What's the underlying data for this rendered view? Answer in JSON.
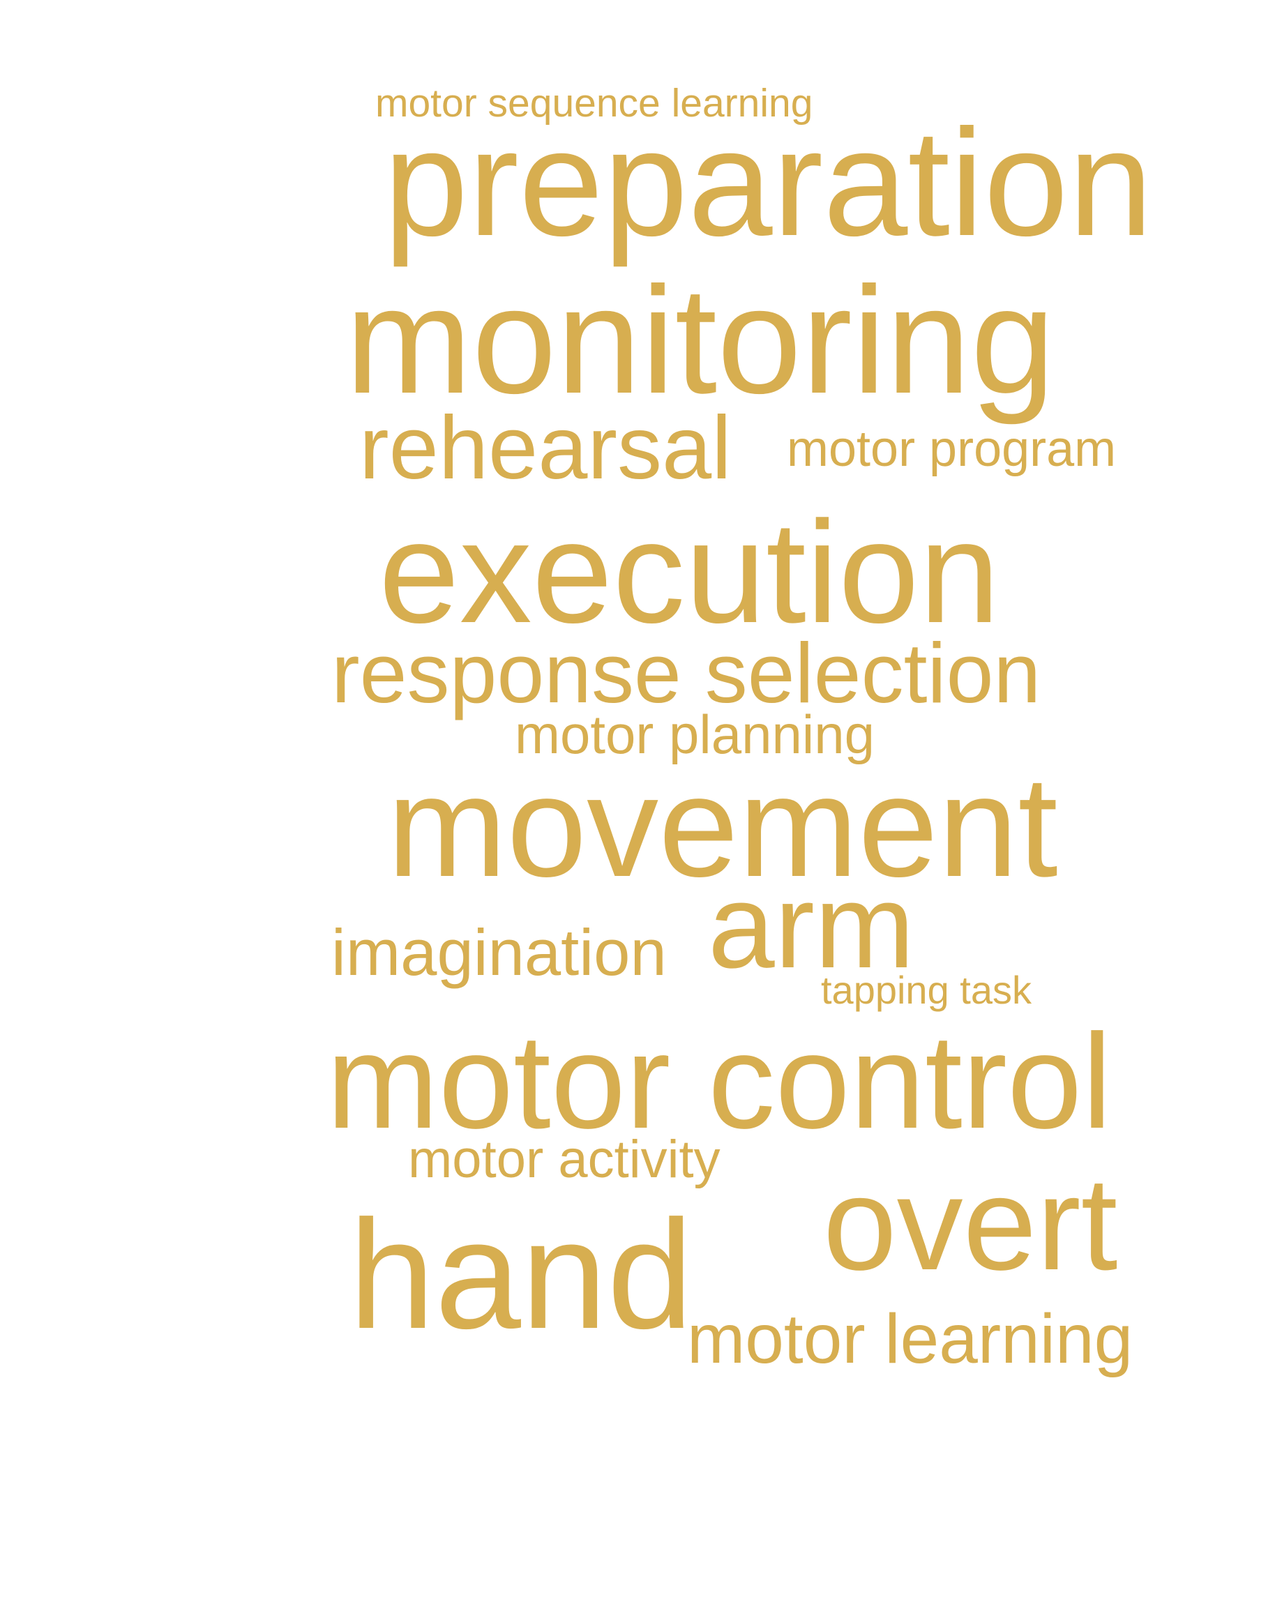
{
  "word_cloud": {
    "color": "#D7AE50",
    "words": [
      "motor sequence learning",
      "preparation",
      "monitoring",
      "rehearsal",
      "motor program",
      "execution",
      "response selection",
      "motor planning",
      "movement",
      "arm",
      "imagination",
      "tapping task",
      "motor control",
      "motor activity",
      "overt",
      "hand",
      "motor learning"
    ]
  }
}
